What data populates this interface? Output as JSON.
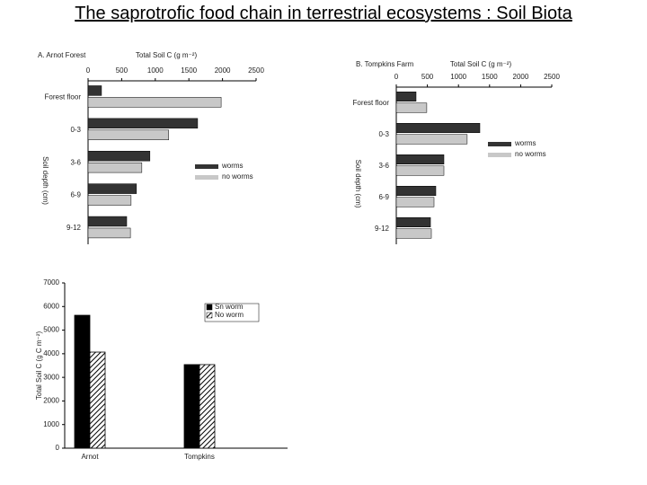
{
  "title": "The saprotrofic food chain in terrestrial ecosystems : Soil Biota",
  "chart_data": [
    {
      "type": "hbar",
      "title": "A. Arnot Forest",
      "x_label": "Total Soil C (g m⁻²)",
      "y_label": "Soil depth (cm)",
      "categories": [
        "Forest floor",
        "0-3",
        "3-6",
        "6-9",
        "9-12"
      ],
      "series": [
        {
          "name": "worms",
          "color": "#333333",
          "values": [
            200,
            1630,
            920,
            720,
            575
          ]
        },
        {
          "name": "no worms",
          "color": "#c8c8c8",
          "values": [
            1980,
            1200,
            800,
            640,
            630
          ]
        }
      ],
      "xlim": [
        0,
        2500
      ],
      "xticks": [
        0,
        500,
        1000,
        1500,
        2000,
        2500
      ]
    },
    {
      "type": "hbar",
      "title": "B. Tompkins Farm",
      "x_label": "Total Soil C (g m⁻²)",
      "y_label": "Soil depth (cm)",
      "categories": [
        "Forest floor",
        "0-3",
        "3-6",
        "6-9",
        "9-12"
      ],
      "series": [
        {
          "name": "worms",
          "color": "#333333",
          "values": [
            318,
            1344,
            766,
            636,
            550
          ]
        },
        {
          "name": "no worms",
          "color": "#c8c8c8",
          "values": [
            490,
            1140,
            766,
            607,
            564
          ]
        }
      ],
      "xlim": [
        0,
        2500
      ],
      "xticks": [
        0,
        500,
        1000,
        1500,
        2000,
        2500
      ]
    },
    {
      "type": "bar",
      "y_label": "Total Soil C (g C m⁻²)",
      "categories": [
        "Arnot",
        "Tompkins"
      ],
      "series": [
        {
          "name": "Sn worm",
          "color": "#000000",
          "pattern": "solid",
          "values": [
            5630,
            3540
          ]
        },
        {
          "name": "No worm",
          "color": "#000000",
          "pattern": "hatch",
          "values": [
            4070,
            3540
          ]
        }
      ],
      "ylim": [
        0,
        7000
      ],
      "yticks": [
        0,
        1000,
        2000,
        3000,
        4000,
        5000,
        6000,
        7000
      ]
    }
  ]
}
